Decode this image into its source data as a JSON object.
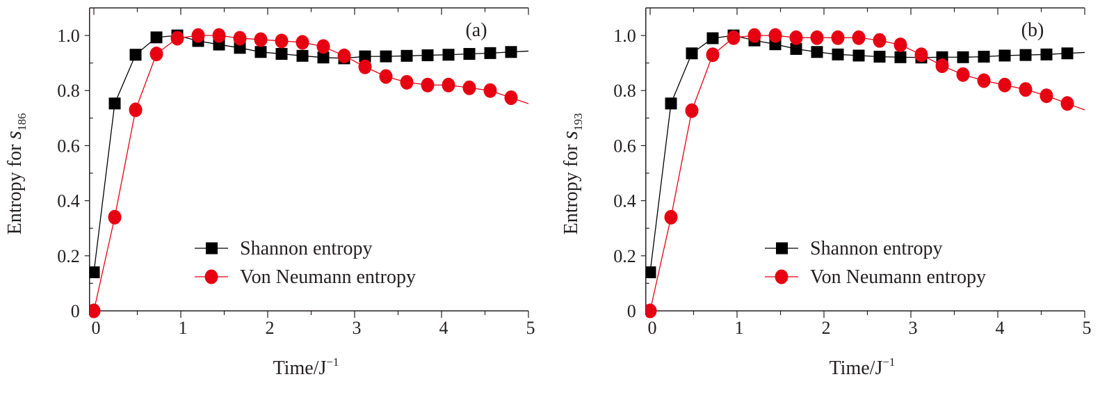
{
  "chart_data": [
    {
      "type": "line",
      "panel_label": "(a)",
      "xlabel": "Time/J",
      "xlabel_sup": "−1",
      "ylabel": "Entropy for ",
      "ylabel_var": "s",
      "ylabel_sub": "186",
      "xlim": [
        -0.05,
        5
      ],
      "ylim": [
        0,
        1.1
      ],
      "xticks": [
        "0",
        "1",
        "2",
        "3",
        "4",
        "5"
      ],
      "yticks": [
        "0",
        "0.2",
        "0.4",
        "0.6",
        "0.8",
        "1.0"
      ],
      "grid": false,
      "legend_position": "bottom-center",
      "x": [
        0,
        0.24,
        0.48,
        0.72,
        0.96,
        1.2,
        1.44,
        1.68,
        1.92,
        2.16,
        2.4,
        2.64,
        2.88,
        3.12,
        3.36,
        3.6,
        3.84,
        4.08,
        4.32,
        4.56,
        4.8
      ],
      "series": [
        {
          "name": "Shannon entropy",
          "color": "#000000",
          "marker": "square",
          "values": [
            0.14,
            0.753,
            0.93,
            0.993,
            1.0,
            0.98,
            0.967,
            0.955,
            0.94,
            0.933,
            0.926,
            0.92,
            0.917,
            0.924,
            0.924,
            0.926,
            0.928,
            0.93,
            0.933,
            0.936,
            0.94
          ]
        },
        {
          "name": "Von Neumann entropy",
          "color": "#e60012",
          "marker": "circle",
          "values": [
            0.0,
            0.34,
            0.73,
            0.933,
            0.99,
            1.0,
            1.0,
            0.99,
            0.985,
            0.98,
            0.975,
            0.96,
            0.926,
            0.886,
            0.851,
            0.83,
            0.82,
            0.82,
            0.81,
            0.8,
            0.774
          ]
        }
      ]
    },
    {
      "type": "line",
      "panel_label": "(b)",
      "xlabel": "Time/J",
      "xlabel_sup": "−1",
      "ylabel": "Entropy for ",
      "ylabel_var": "s",
      "ylabel_sub": "193",
      "xlim": [
        -0.05,
        5
      ],
      "ylim": [
        0,
        1.1
      ],
      "xticks": [
        "0",
        "1",
        "2",
        "3",
        "4",
        "5"
      ],
      "yticks": [
        "0",
        "0.2",
        "0.4",
        "0.6",
        "0.8",
        "1.0"
      ],
      "grid": false,
      "legend_position": "bottom-center",
      "x": [
        0,
        0.24,
        0.48,
        0.72,
        0.96,
        1.2,
        1.44,
        1.68,
        1.92,
        2.16,
        2.4,
        2.64,
        2.88,
        3.12,
        3.36,
        3.6,
        3.84,
        4.08,
        4.32,
        4.56,
        4.8
      ],
      "series": [
        {
          "name": "Shannon entropy",
          "color": "#000000",
          "marker": "square",
          "values": [
            0.14,
            0.753,
            0.935,
            0.99,
            1.0,
            0.982,
            0.968,
            0.951,
            0.94,
            0.931,
            0.927,
            0.923,
            0.921,
            0.92,
            0.921,
            0.921,
            0.923,
            0.927,
            0.929,
            0.931,
            0.935
          ]
        },
        {
          "name": "Von Neumann entropy",
          "color": "#e60012",
          "marker": "circle",
          "values": [
            0.0,
            0.34,
            0.727,
            0.93,
            0.992,
            1.0,
            1.0,
            0.992,
            0.992,
            0.992,
            0.992,
            0.982,
            0.966,
            0.93,
            0.89,
            0.858,
            0.836,
            0.82,
            0.804,
            0.781,
            0.753
          ]
        }
      ]
    }
  ]
}
